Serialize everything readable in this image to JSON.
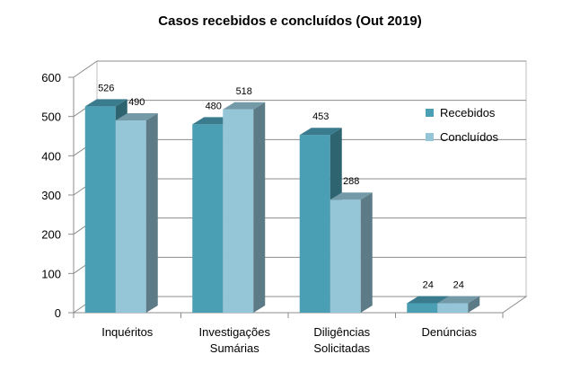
{
  "chart_data": {
    "type": "bar",
    "title": "Casos recebidos e concluídos (Out 2019)",
    "categories": [
      [
        "Inquéritos"
      ],
      [
        "Investigações",
        "Sumárias"
      ],
      [
        "Diligências",
        "Solicitadas"
      ],
      [
        "Denúncias"
      ]
    ],
    "series": [
      {
        "name": "Recebidos",
        "values": [
          526,
          480,
          453,
          24
        ],
        "color": "#4a9fb5"
      },
      {
        "name": "Concluídos",
        "values": [
          490,
          518,
          288,
          24
        ],
        "color": "#95c6d8"
      }
    ],
    "ylim": [
      0,
      600
    ],
    "yticks": [
      0,
      100,
      200,
      300,
      400,
      500,
      600
    ],
    "grid": true,
    "legend": "right",
    "style": "3d-columns"
  }
}
